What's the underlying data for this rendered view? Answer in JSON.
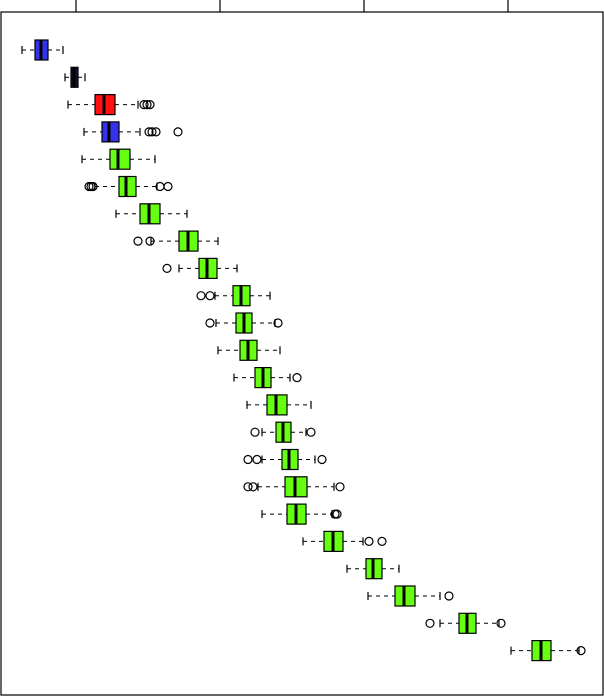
{
  "chart_data": {
    "type": "boxplot",
    "orientation": "horizontal",
    "title": "",
    "xlabel": "",
    "ylabel": "",
    "x_tick_labels_visible": false,
    "grid": false,
    "colors": {
      "blue": "#3333ee",
      "navy": "#111133",
      "red": "#ff1111",
      "green": "#66ff11",
      "stroke": "#000000"
    },
    "boxes": [
      {
        "color": "blue",
        "whisker_low": 22,
        "q1": 35,
        "median": 41,
        "q3": 48,
        "whisker_high": 63,
        "outliers": []
      },
      {
        "color": "navy",
        "whisker_low": 65,
        "q1": 71,
        "median": 74,
        "q3": 78,
        "whisker_high": 85,
        "outliers": []
      },
      {
        "color": "red",
        "whisker_low": 68,
        "q1": 95,
        "median": 104,
        "q3": 115,
        "whisker_high": 138,
        "outliers": [
          144,
          147,
          150
        ]
      },
      {
        "color": "blue",
        "whisker_low": 84,
        "q1": 102,
        "median": 109,
        "q3": 119,
        "whisker_high": 140,
        "outliers": [
          149,
          152,
          156,
          178
        ]
      },
      {
        "color": "green",
        "whisker_low": 82,
        "q1": 110,
        "median": 118,
        "q3": 130,
        "whisker_high": 155,
        "outliers": []
      },
      {
        "color": "green",
        "whisker_low": 95,
        "q1": 119,
        "median": 126,
        "q3": 136,
        "whisker_high": 157,
        "outliers": [
          89,
          91,
          93,
          160,
          168
        ]
      },
      {
        "color": "green",
        "whisker_low": 116,
        "q1": 140,
        "median": 149,
        "q3": 160,
        "whisker_high": 187,
        "outliers": []
      },
      {
        "color": "green",
        "whisker_low": 151,
        "q1": 179,
        "median": 188,
        "q3": 198,
        "whisker_high": 218,
        "outliers": [
          138,
          150
        ]
      },
      {
        "color": "green",
        "whisker_low": 179,
        "q1": 199,
        "median": 207,
        "q3": 217,
        "whisker_high": 237,
        "outliers": [
          167
        ]
      },
      {
        "color": "green",
        "whisker_low": 215,
        "q1": 233,
        "median": 241,
        "q3": 250,
        "whisker_high": 270,
        "outliers": [
          201,
          210
        ]
      },
      {
        "color": "green",
        "whisker_low": 216,
        "q1": 236,
        "median": 244,
        "q3": 252,
        "whisker_high": 275,
        "outliers": [
          210,
          278
        ]
      },
      {
        "color": "green",
        "whisker_low": 218,
        "q1": 240,
        "median": 248,
        "q3": 257,
        "whisker_high": 280,
        "outliers": []
      },
      {
        "color": "green",
        "whisker_low": 234,
        "q1": 255,
        "median": 263,
        "q3": 271,
        "whisker_high": 290,
        "outliers": [
          297
        ]
      },
      {
        "color": "green",
        "whisker_low": 247,
        "q1": 267,
        "median": 276,
        "q3": 287,
        "whisker_high": 311,
        "outliers": []
      },
      {
        "color": "green",
        "whisker_low": 262,
        "q1": 276,
        "median": 283,
        "q3": 291,
        "whisker_high": 306,
        "outliers": [
          255,
          311
        ]
      },
      {
        "color": "green",
        "whisker_low": 262,
        "q1": 282,
        "median": 289,
        "q3": 298,
        "whisker_high": 315,
        "outliers": [
          248,
          257,
          322
        ]
      },
      {
        "color": "green",
        "whisker_low": 258,
        "q1": 285,
        "median": 295,
        "q3": 307,
        "whisker_high": 334,
        "outliers": [
          248,
          253,
          340
        ]
      },
      {
        "color": "green",
        "whisker_low": 262,
        "q1": 287,
        "median": 296,
        "q3": 306,
        "whisker_high": 332,
        "outliers": [
          335,
          337
        ]
      },
      {
        "color": "green",
        "whisker_low": 303,
        "q1": 324,
        "median": 333,
        "q3": 343,
        "whisker_high": 363,
        "outliers": [
          369,
          382
        ]
      },
      {
        "color": "green",
        "whisker_low": 347,
        "q1": 366,
        "median": 373,
        "q3": 382,
        "whisker_high": 399,
        "outliers": []
      },
      {
        "color": "green",
        "whisker_low": 368,
        "q1": 395,
        "median": 404,
        "q3": 415,
        "whisker_high": 440,
        "outliers": [
          449
        ]
      },
      {
        "color": "green",
        "whisker_low": 440,
        "q1": 459,
        "median": 467,
        "q3": 476,
        "whisker_high": 499,
        "outliers": [
          430,
          501
        ]
      },
      {
        "color": "green",
        "whisker_low": 511,
        "q1": 532,
        "median": 541,
        "q3": 551,
        "whisker_high": 579,
        "outliers": [
          581
        ]
      }
    ]
  }
}
